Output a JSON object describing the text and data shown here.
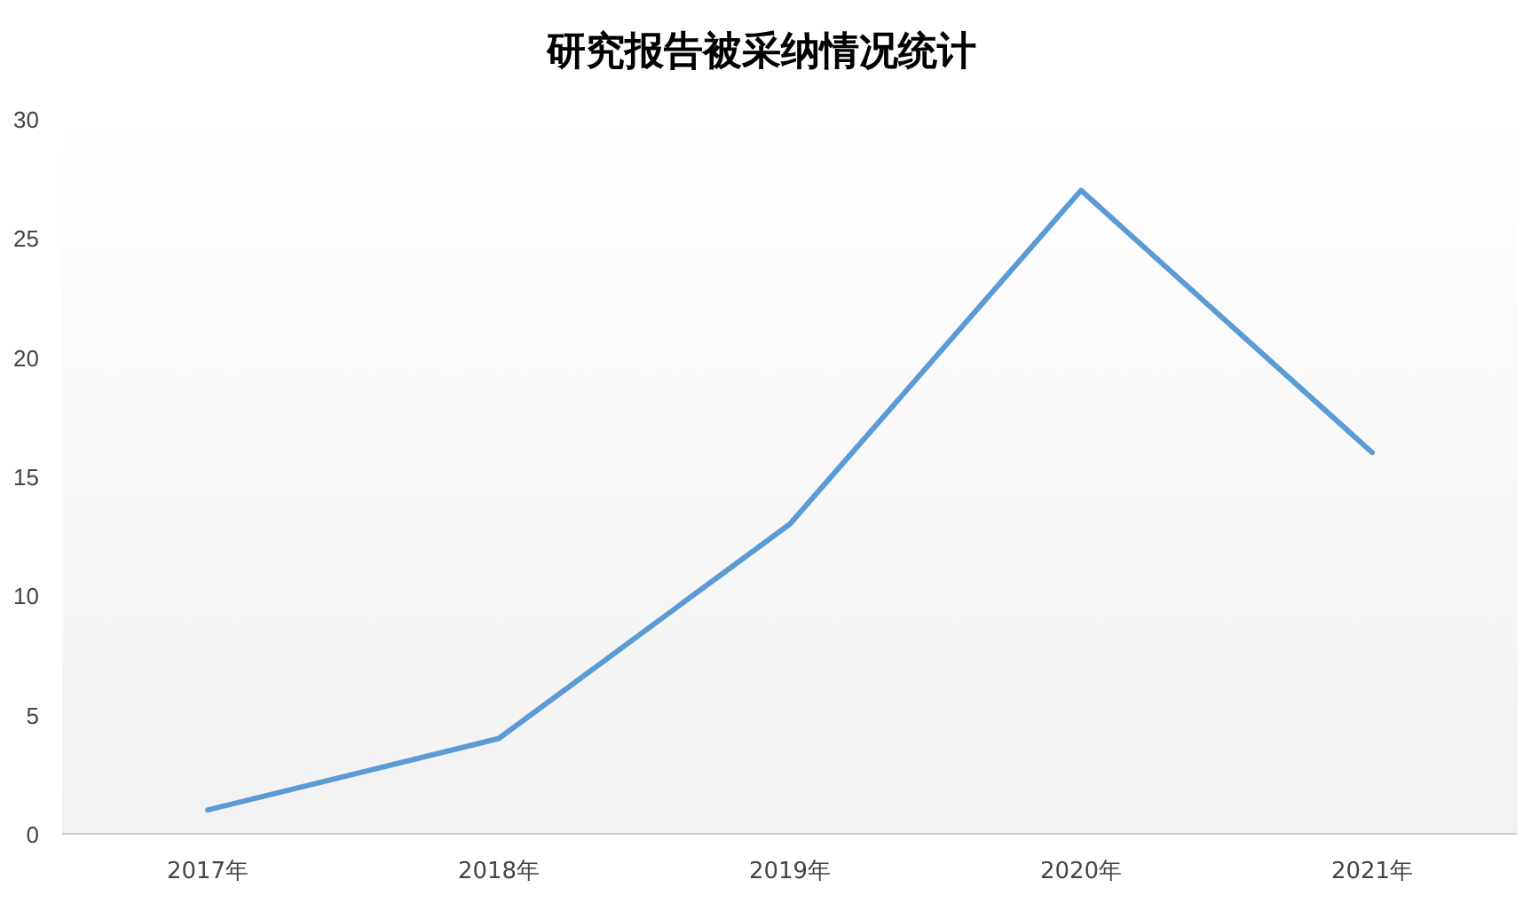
{
  "chart_data": {
    "type": "line",
    "title": "研究报告被采纳情况统计",
    "categories": [
      "2017年",
      "2018年",
      "2019年",
      "2020年",
      "2021年"
    ],
    "series": [
      {
        "color": "#5b9bd5",
        "values": [
          1,
          4,
          13,
          27,
          16
        ]
      }
    ],
    "ylim": [
      0,
      30
    ],
    "yticks": [
      0,
      5,
      10,
      15,
      20,
      25,
      30
    ],
    "grid": false,
    "marker": "none",
    "line_style": "solid"
  }
}
